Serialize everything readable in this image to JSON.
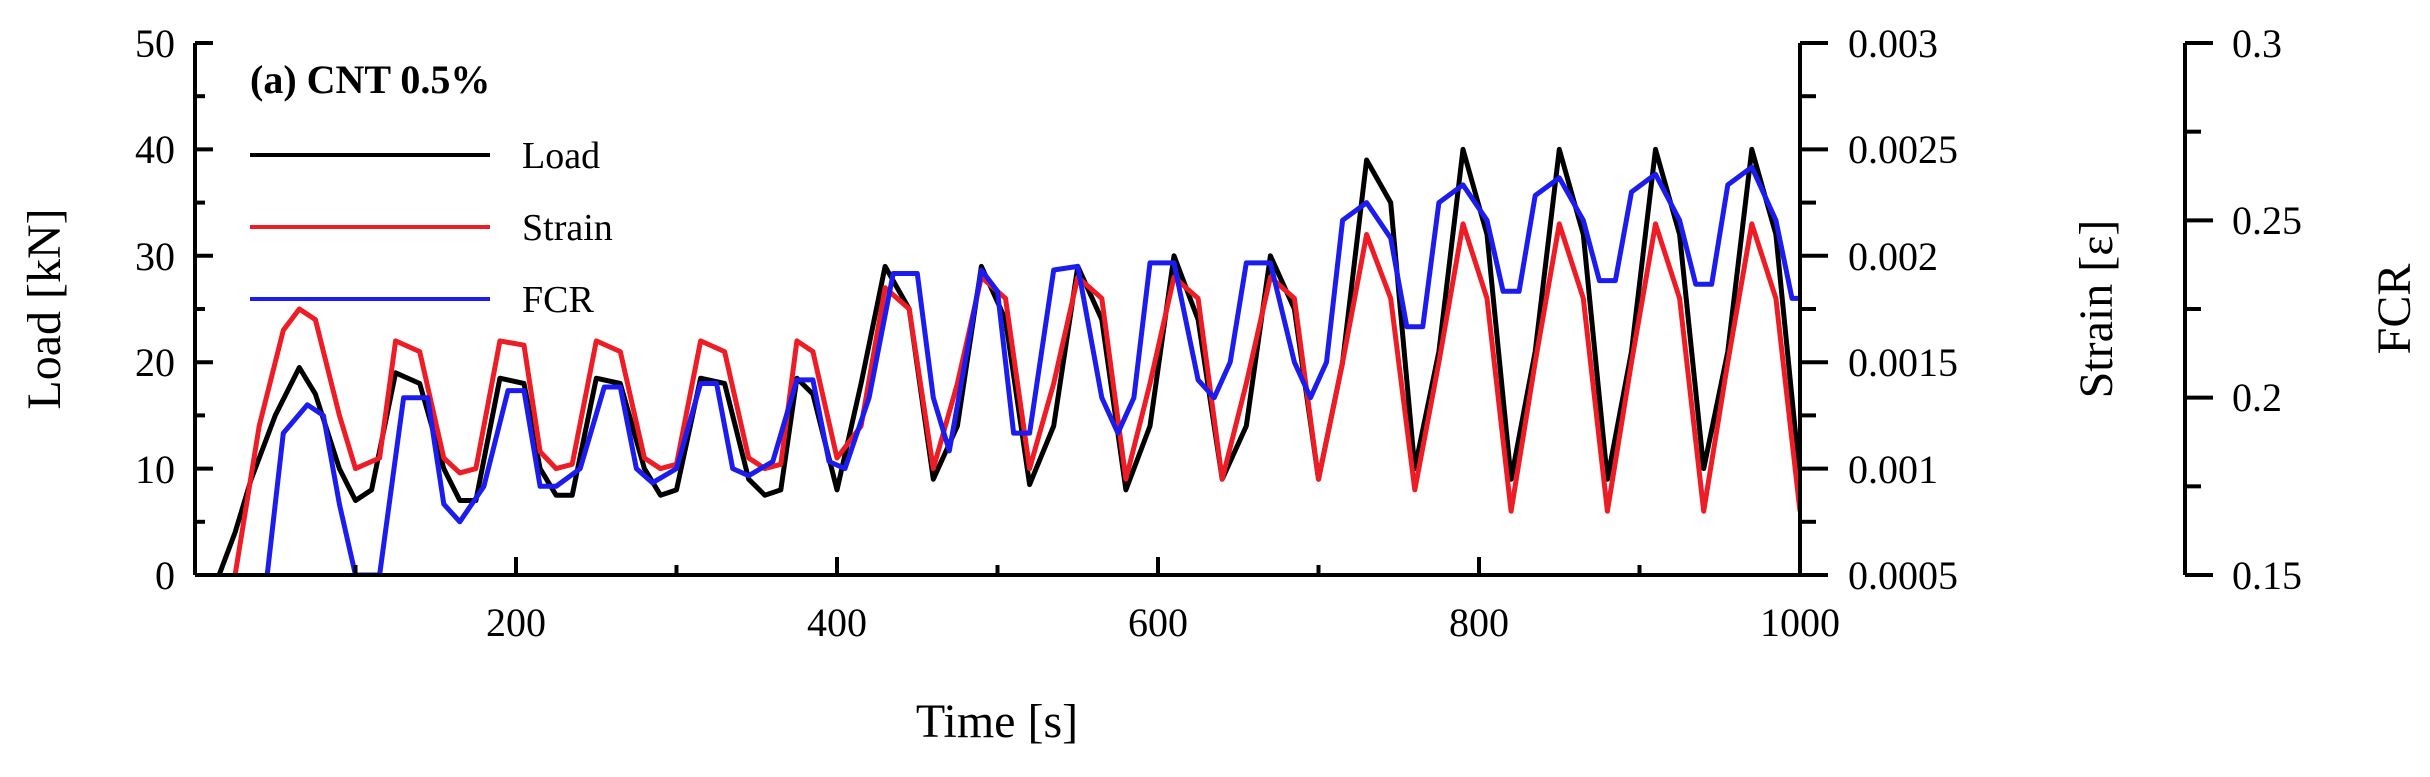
{
  "chart_data": {
    "type": "line",
    "title": "(a) CNT 0.5%",
    "xlabel": "Time [s]",
    "xlim": [
      0,
      1000
    ],
    "xticks": [
      200,
      400,
      600,
      800,
      1000
    ],
    "xtick_labels": [
      "200",
      "400",
      "600",
      "800",
      "1000"
    ],
    "axes": {
      "load": {
        "label": "Load [kN]",
        "ylim": [
          0,
          50
        ],
        "ticks": [
          0,
          10,
          20,
          30,
          40,
          50
        ],
        "tick_labels": [
          "0",
          "10",
          "20",
          "30",
          "40",
          "50"
        ]
      },
      "strain": {
        "label": "Strain [ε]",
        "ylim": [
          0.0005,
          0.003
        ],
        "ticks": [
          0.0005,
          0.001,
          0.0015,
          0.002,
          0.0025,
          0.003
        ],
        "tick_labels": [
          "0.0005",
          "0.001",
          "0.0015",
          "0.002",
          "0.0025",
          "0.003"
        ]
      },
      "fcr": {
        "label": "FCR",
        "ylim": [
          0.15,
          0.3
        ],
        "ticks": [
          0.15,
          0.2,
          0.25,
          0.3
        ],
        "tick_labels": [
          "0.15",
          "0.2",
          "0.25",
          "0.3"
        ]
      }
    },
    "legend": {
      "position": "top-left",
      "entries": [
        {
          "label": "Load",
          "color": "#000000"
        },
        {
          "label": "Strain",
          "color": "#ee1c24"
        },
        {
          "label": "FCR",
          "color": "#1c1cee"
        }
      ]
    },
    "series": [
      {
        "name": "Load",
        "axis": "load",
        "color": "#000000",
        "x": [
          15,
          25,
          35,
          50,
          65,
          75,
          90,
          100,
          110,
          125,
          140,
          155,
          165,
          175,
          190,
          205,
          215,
          225,
          235,
          250,
          265,
          280,
          290,
          300,
          315,
          330,
          345,
          355,
          365,
          375,
          385,
          400,
          415,
          430,
          445,
          460,
          475,
          490,
          505,
          520,
          535,
          550,
          565,
          580,
          595,
          610,
          625,
          640,
          655,
          670,
          685,
          700,
          715,
          730,
          745,
          760,
          775,
          790,
          805,
          820,
          835,
          850,
          865,
          880,
          895,
          910,
          925,
          940,
          955,
          970,
          985,
          1000
        ],
        "y": [
          0,
          4,
          9,
          15,
          19.5,
          17,
          10,
          7,
          8,
          19,
          18,
          10,
          7,
          7,
          18.5,
          18,
          10,
          7.5,
          7.5,
          18.5,
          18,
          10,
          7.5,
          8,
          18.5,
          18,
          9,
          7.5,
          8,
          18.5,
          17,
          8,
          18,
          29,
          25,
          9,
          14,
          29,
          24,
          8.5,
          14,
          29,
          24,
          8,
          14,
          30,
          24,
          9,
          14,
          30,
          25,
          9,
          20,
          39,
          35,
          10,
          21,
          40,
          32,
          9,
          21,
          40,
          32,
          9,
          21,
          40,
          32,
          10,
          21,
          40,
          32,
          9
        ]
      },
      {
        "name": "Strain",
        "axis": "strain",
        "color": "#ee1c24",
        "x": [
          25,
          40,
          55,
          65,
          75,
          90,
          100,
          115,
          125,
          140,
          155,
          165,
          175,
          190,
          205,
          215,
          225,
          235,
          250,
          265,
          280,
          290,
          300,
          315,
          330,
          345,
          355,
          365,
          375,
          385,
          400,
          415,
          430,
          445,
          460,
          475,
          490,
          505,
          520,
          535,
          550,
          565,
          580,
          595,
          610,
          625,
          640,
          655,
          670,
          685,
          700,
          715,
          730,
          745,
          760,
          775,
          790,
          805,
          820,
          835,
          850,
          865,
          880,
          895,
          910,
          925,
          940,
          955,
          970,
          985,
          1000
        ],
        "y": [
          0.0005,
          0.0012,
          0.00165,
          0.00175,
          0.0017,
          0.00125,
          0.001,
          0.00105,
          0.0016,
          0.00155,
          0.00105,
          0.00098,
          0.001,
          0.0016,
          0.00158,
          0.00108,
          0.001,
          0.00102,
          0.0016,
          0.00155,
          0.00105,
          0.001,
          0.00102,
          0.0016,
          0.00155,
          0.00105,
          0.001,
          0.00102,
          0.0016,
          0.00155,
          0.00105,
          0.0012,
          0.00185,
          0.00175,
          0.001,
          0.0014,
          0.0019,
          0.0018,
          0.001,
          0.0014,
          0.0019,
          0.0018,
          0.00095,
          0.0014,
          0.0019,
          0.0018,
          0.00095,
          0.0014,
          0.0019,
          0.0018,
          0.00095,
          0.0015,
          0.0021,
          0.0018,
          0.0009,
          0.0015,
          0.00215,
          0.0018,
          0.0008,
          0.0015,
          0.00215,
          0.0018,
          0.0008,
          0.0015,
          0.00215,
          0.0018,
          0.0008,
          0.0015,
          0.00215,
          0.0018,
          0.0008
        ]
      },
      {
        "name": "FCR",
        "axis": "fcr",
        "color": "#1c1cee",
        "x": [
          45,
          55,
          70,
          80,
          90,
          100,
          115,
          130,
          145,
          155,
          165,
          180,
          195,
          205,
          215,
          225,
          240,
          255,
          265,
          275,
          285,
          300,
          315,
          325,
          335,
          345,
          360,
          375,
          385,
          395,
          405,
          420,
          435,
          450,
          460,
          470,
          490,
          500,
          510,
          520,
          535,
          550,
          565,
          575,
          585,
          595,
          610,
          625,
          635,
          645,
          655,
          670,
          685,
          695,
          705,
          715,
          730,
          745,
          755,
          765,
          775,
          790,
          805,
          815,
          825,
          835,
          850,
          865,
          875,
          885,
          895,
          910,
          925,
          935,
          945,
          955,
          970,
          985,
          995,
          1000
        ],
        "y": [
          0.15,
          0.19,
          0.198,
          0.195,
          0.17,
          0.15,
          0.15,
          0.2,
          0.2,
          0.17,
          0.165,
          0.175,
          0.202,
          0.202,
          0.175,
          0.175,
          0.18,
          0.203,
          0.203,
          0.18,
          0.176,
          0.18,
          0.204,
          0.204,
          0.18,
          0.178,
          0.182,
          0.205,
          0.205,
          0.182,
          0.18,
          0.2,
          0.235,
          0.235,
          0.2,
          0.185,
          0.236,
          0.23,
          0.19,
          0.19,
          0.236,
          0.237,
          0.2,
          0.19,
          0.2,
          0.238,
          0.238,
          0.205,
          0.2,
          0.21,
          0.238,
          0.238,
          0.21,
          0.2,
          0.21,
          0.25,
          0.255,
          0.245,
          0.22,
          0.22,
          0.255,
          0.26,
          0.25,
          0.23,
          0.23,
          0.257,
          0.262,
          0.25,
          0.233,
          0.233,
          0.258,
          0.263,
          0.25,
          0.232,
          0.232,
          0.26,
          0.265,
          0.25,
          0.228,
          0.228
        ]
      }
    ]
  }
}
